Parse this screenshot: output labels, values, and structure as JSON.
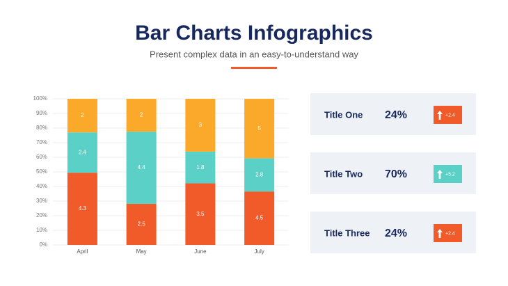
{
  "chart_data": {
    "type": "bar",
    "stack": "percent",
    "title": "Bar Charts Infographics",
    "subtitle": "Present complex data in an easy-to-understand way",
    "categories": [
      "April",
      "May",
      "June",
      "July"
    ],
    "series": [
      {
        "color": "#f15a29",
        "values": [
          4.3,
          2.5,
          3.5,
          4.5
        ]
      },
      {
        "color": "#5ad0c6",
        "values": [
          2.4,
          4.4,
          1.8,
          2.8
        ]
      },
      {
        "color": "#fba92b",
        "values": [
          2,
          2,
          3,
          5
        ]
      }
    ],
    "ylim": [
      0,
      100
    ],
    "yticks": [
      {
        "value": 0,
        "label": "0%"
      },
      {
        "value": 10,
        "label": "10%"
      },
      {
        "value": 20,
        "label": "20%"
      },
      {
        "value": 30,
        "label": "30%"
      },
      {
        "value": 40,
        "label": "40%"
      },
      {
        "value": 50,
        "label": "50%"
      },
      {
        "value": 60,
        "label": "60%"
      },
      {
        "value": 70,
        "label": "70%"
      },
      {
        "value": 80,
        "label": "80%"
      },
      {
        "value": 90,
        "label": "90%"
      },
      {
        "value": 100,
        "label": "100%"
      }
    ],
    "grid": true
  },
  "cards": [
    {
      "title": "Title One",
      "value": "24%",
      "change": "+2.4",
      "color": "#f15a29"
    },
    {
      "title": "Title Two",
      "value": "70%",
      "change": "+5.2",
      "color": "#5ad0c6"
    },
    {
      "title": "Title Three",
      "value": "24%",
      "change": "+2.4",
      "color": "#f15a29"
    }
  ]
}
